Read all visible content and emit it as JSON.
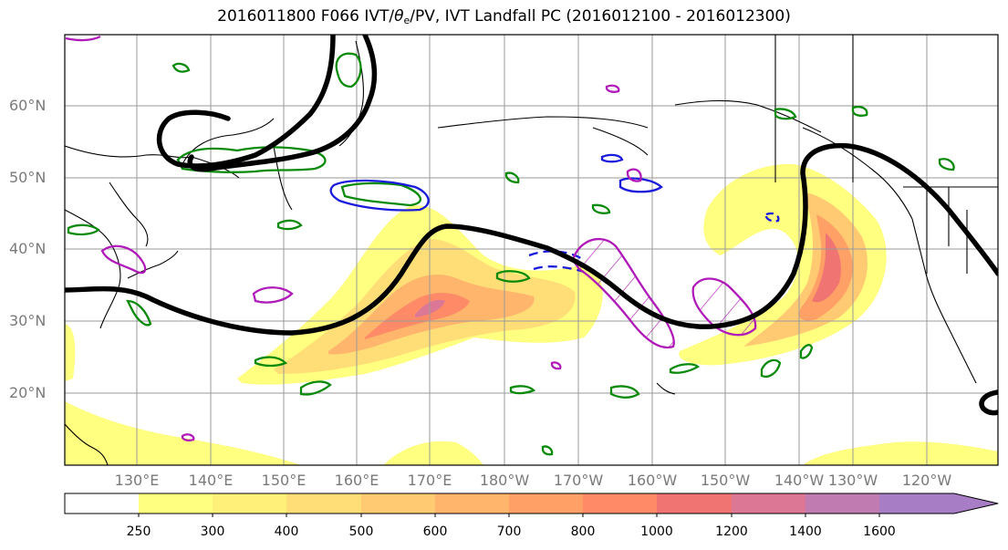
{
  "title_prefix": "2016011800 F066 IVT/",
  "title_theta": "θ",
  "title_theta_sub": "e",
  "title_suffix": "/PV, IVT Landfall PC (2016012100 - 2016012300)",
  "lat_labels": [
    "60°N",
    "50°N",
    "40°N",
    "30°N",
    "20°N"
  ],
  "lon_labels": [
    "130°E",
    "140°E",
    "150°E",
    "160°E",
    "170°E",
    "180°W",
    "170°W",
    "160°W",
    "150°W",
    "140°W",
    "130°W",
    "120°W"
  ],
  "colorbar": {
    "levels": [
      "250",
      "300",
      "400",
      "500",
      "600",
      "700",
      "800",
      "1000",
      "1200",
      "1400",
      "1600"
    ],
    "colors": [
      "#ffff80",
      "#fff07a",
      "#ffdd77",
      "#ffca72",
      "#ffb56c",
      "#ffa066",
      "#ff8a68",
      "#f07472",
      "#dc7895",
      "#c07cb0",
      "#a77ec5"
    ]
  },
  "contour_colors": {
    "jet": "#000000",
    "pv": "#0a8a0a",
    "theta_e": "#1a1adc",
    "landfall": "#b01ab8"
  }
}
